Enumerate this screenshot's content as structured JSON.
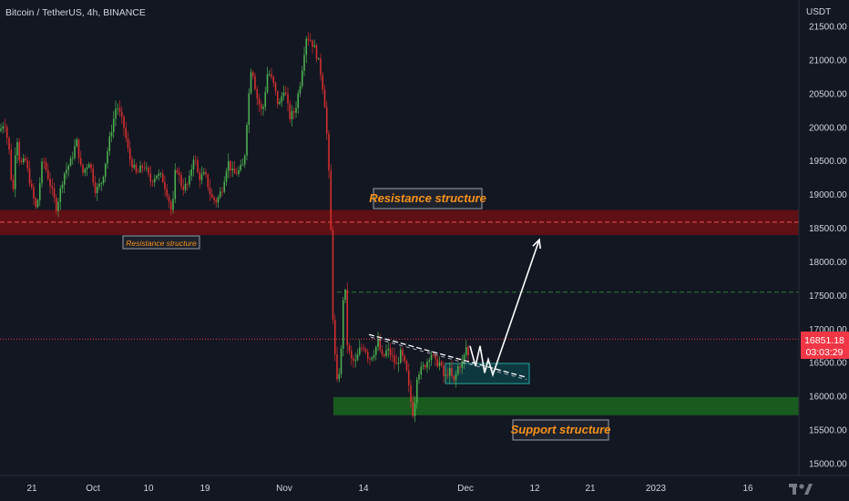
{
  "header": {
    "symbol": "Bitcoin / TetherUS, 4h, BINANCE",
    "currency": "USDT"
  },
  "colors": {
    "background": "#131722",
    "bull": "#4caf50",
    "bear": "#d32f2f",
    "resistance_zone": "#6d0f12",
    "support_zone": "#1c6b1f",
    "annotation_text": "#f7931a",
    "price_tag": "#f23645",
    "target_line": "#2e7d32"
  },
  "chart_data": {
    "type": "candlestick",
    "title": "Bitcoin / TetherUS, 4h, BINANCE",
    "ylim": [
      15000,
      21600
    ],
    "y_ticks": [
      15000,
      15500,
      16000,
      16500,
      17000,
      17500,
      18000,
      18500,
      19000,
      19500,
      20000,
      20500,
      21000,
      21500
    ],
    "y_tick_labels": [
      "15000.00",
      "15500.00",
      "16000.00",
      "16500.00",
      "17000.00",
      "17500.00",
      "18000.00",
      "18500.00",
      "19000.00",
      "19500.00",
      "20000.00",
      "20500.00",
      "21000.00",
      "21500.00"
    ],
    "x_tick_labels": [
      "21",
      "Oct",
      "10",
      "19",
      "Nov",
      "14",
      "Dec",
      "12",
      "21",
      "2023",
      "16"
    ],
    "price_label": {
      "value": "16851.18",
      "countdown": "03:03:29"
    },
    "series_path": [
      [
        0,
        19950
      ],
      [
        5,
        20100
      ],
      [
        10,
        19650
      ],
      [
        14,
        18950
      ],
      [
        18,
        19950
      ],
      [
        22,
        19450
      ],
      [
        28,
        19500
      ],
      [
        35,
        19050
      ],
      [
        40,
        18750
      ],
      [
        47,
        19550
      ],
      [
        55,
        19150
      ],
      [
        62,
        18800
      ],
      [
        70,
        19300
      ],
      [
        78,
        19500
      ],
      [
        84,
        19800
      ],
      [
        90,
        19300
      ],
      [
        98,
        19500
      ],
      [
        105,
        19050
      ],
      [
        112,
        19200
      ],
      [
        120,
        19800
      ],
      [
        128,
        20350
      ],
      [
        136,
        20000
      ],
      [
        142,
        19550
      ],
      [
        150,
        19300
      ],
      [
        158,
        19450
      ],
      [
        165,
        19200
      ],
      [
        172,
        19300
      ],
      [
        178,
        19250
      ],
      [
        184,
        19000
      ],
      [
        189,
        18700
      ],
      [
        193,
        19450
      ],
      [
        200,
        19100
      ],
      [
        207,
        19150
      ],
      [
        213,
        19600
      ],
      [
        218,
        19250
      ],
      [
        225,
        19300
      ],
      [
        232,
        18950
      ],
      [
        238,
        18900
      ],
      [
        244,
        19100
      ],
      [
        250,
        19500
      ],
      [
        256,
        19300
      ],
      [
        262,
        19350
      ],
      [
        268,
        19450
      ],
      [
        272,
        20300
      ],
      [
        276,
        20950
      ],
      [
        282,
        20450
      ],
      [
        288,
        20200
      ],
      [
        294,
        20850
      ],
      [
        300,
        20650
      ],
      [
        306,
        20300
      ],
      [
        312,
        20600
      ],
      [
        318,
        20150
      ],
      [
        324,
        20250
      ],
      [
        330,
        20700
      ],
      [
        336,
        21350
      ],
      [
        341,
        21300
      ],
      [
        346,
        21150
      ],
      [
        351,
        20900
      ],
      [
        356,
        20450
      ],
      [
        360,
        19650
      ],
      [
        363,
        18600
      ],
      [
        366,
        16900
      ],
      [
        370,
        16200
      ],
      [
        374,
        16500
      ],
      [
        378,
        17900
      ],
      [
        381,
        16800
      ],
      [
        385,
        16550
      ],
      [
        390,
        16500
      ],
      [
        395,
        16700
      ],
      [
        400,
        16750
      ],
      [
        405,
        16550
      ],
      [
        410,
        16650
      ],
      [
        415,
        16800
      ],
      [
        420,
        16550
      ],
      [
        425,
        16700
      ],
      [
        430,
        16600
      ],
      [
        435,
        16450
      ],
      [
        440,
        16650
      ],
      [
        446,
        16400
      ],
      [
        450,
        16000
      ],
      [
        454,
        15700
      ],
      [
        458,
        16350
      ],
      [
        463,
        16400
      ],
      [
        468,
        16500
      ],
      [
        473,
        16650
      ],
      [
        478,
        16500
      ],
      [
        483,
        16500
      ],
      [
        488,
        16250
      ],
      [
        493,
        16400
      ],
      [
        498,
        16200
      ],
      [
        503,
        16450
      ],
      [
        508,
        16500
      ],
      [
        512,
        16750
      ],
      [
        514,
        16600
      ]
    ],
    "annotations": [
      {
        "text": "Resistance structure",
        "style": "large"
      },
      {
        "text": "Resistance structure",
        "style": "small"
      },
      {
        "text": "Support structure",
        "style": "large"
      }
    ],
    "zones": {
      "resistance": [
        18400,
        18770
      ],
      "support": [
        15720,
        15990
      ],
      "target_box": [
        16190,
        16490
      ]
    },
    "levels": {
      "resistance_mid": 18590,
      "target": 17550,
      "current": 16851.18
    },
    "projection_path": [
      [
        516,
        16750
      ],
      [
        522,
        16450
      ],
      [
        527,
        16750
      ],
      [
        532,
        16350
      ],
      [
        536,
        16550
      ],
      [
        541,
        16320
      ],
      [
        592,
        18330
      ]
    ],
    "trendline": {
      "start": [
        405,
        16920
      ],
      "end": [
        576,
        16290
      ]
    },
    "grid": false,
    "legend": "none"
  }
}
